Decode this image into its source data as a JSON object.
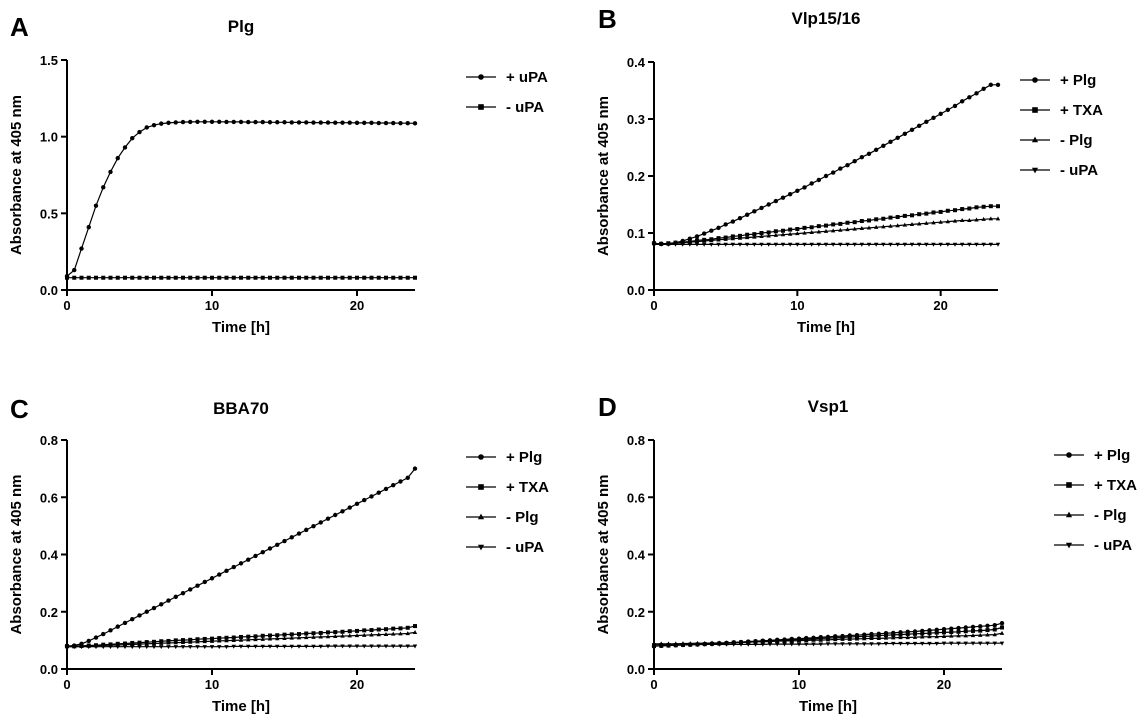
{
  "chart_data": [
    {
      "panel": "A",
      "type": "line",
      "title": "Plg",
      "xlabel": "Time [h]",
      "ylabel": "Absorbance at 405 nm",
      "xlim": [
        0,
        24
      ],
      "ylim": [
        0,
        1.5
      ],
      "x_ticks": [
        "0",
        "10",
        "20"
      ],
      "y_ticks": [
        "0.0",
        "0.5",
        "1.0",
        "1.5"
      ],
      "x_tick_values": [
        0,
        10,
        20
      ],
      "y_tick_values": [
        0,
        0.5,
        1.0,
        1.5
      ],
      "grid": false,
      "legend_position": "right",
      "x": [
        0,
        0.5,
        1,
        1.5,
        2,
        2.5,
        3,
        3.5,
        4,
        4.5,
        5,
        5.5,
        6,
        6.5,
        7,
        7.5,
        8,
        8.5,
        9,
        9.5,
        10,
        10.5,
        11,
        11.5,
        12,
        12.5,
        13,
        13.5,
        14,
        14.5,
        15,
        15.5,
        16,
        16.5,
        17,
        17.5,
        18,
        18.5,
        19,
        19.5,
        20,
        20.5,
        21,
        21.5,
        22,
        22.5,
        23,
        23.5,
        24
      ],
      "series": [
        {
          "name": "+ uPA",
          "marker": "circle",
          "values": [
            0.09,
            0.13,
            0.27,
            0.41,
            0.55,
            0.67,
            0.77,
            0.86,
            0.93,
            0.99,
            1.03,
            1.06,
            1.075,
            1.085,
            1.09,
            1.093,
            1.095,
            1.096,
            1.097,
            1.097,
            1.097,
            1.097,
            1.096,
            1.096,
            1.096,
            1.095,
            1.095,
            1.095,
            1.094,
            1.094,
            1.094,
            1.093,
            1.093,
            1.093,
            1.092,
            1.092,
            1.092,
            1.091,
            1.091,
            1.091,
            1.09,
            1.09,
            1.09,
            1.089,
            1.089,
            1.089,
            1.088,
            1.088,
            1.087
          ]
        },
        {
          "name": "- uPA",
          "marker": "square",
          "values": [
            0.08,
            0.08,
            0.08,
            0.08,
            0.08,
            0.08,
            0.08,
            0.08,
            0.08,
            0.08,
            0.08,
            0.08,
            0.08,
            0.08,
            0.08,
            0.08,
            0.08,
            0.08,
            0.08,
            0.08,
            0.08,
            0.08,
            0.08,
            0.08,
            0.08,
            0.08,
            0.08,
            0.08,
            0.08,
            0.08,
            0.08,
            0.08,
            0.08,
            0.08,
            0.08,
            0.08,
            0.08,
            0.08,
            0.08,
            0.08,
            0.08,
            0.08,
            0.08,
            0.08,
            0.08,
            0.08,
            0.08,
            0.08,
            0.08
          ]
        }
      ]
    },
    {
      "panel": "B",
      "type": "line",
      "title": "Vlp15/16",
      "xlabel": "Time [h]",
      "ylabel": "Absorbance at 405 nm",
      "xlim": [
        0,
        24
      ],
      "ylim": [
        0,
        0.4
      ],
      "x_ticks": [
        "0",
        "10",
        "20"
      ],
      "y_ticks": [
        "0.0",
        "0.1",
        "0.2",
        "0.3",
        "0.4"
      ],
      "x_tick_values": [
        0,
        10,
        20
      ],
      "y_tick_values": [
        0,
        0.1,
        0.2,
        0.3,
        0.4
      ],
      "grid": false,
      "legend_position": "right",
      "x": [
        0,
        0.5,
        1,
        1.5,
        2,
        2.5,
        3,
        3.5,
        4,
        4.5,
        5,
        5.5,
        6,
        6.5,
        7,
        7.5,
        8,
        8.5,
        9,
        9.5,
        10,
        10.5,
        11,
        11.5,
        12,
        12.5,
        13,
        13.5,
        14,
        14.5,
        15,
        15.5,
        16,
        16.5,
        17,
        17.5,
        18,
        18.5,
        19,
        19.5,
        20,
        20.5,
        21,
        21.5,
        22,
        22.5,
        23,
        23.5,
        24
      ],
      "series": [
        {
          "name": "+ Plg",
          "marker": "circle",
          "values": [
            0.082,
            0.081,
            0.081,
            0.083,
            0.086,
            0.09,
            0.094,
            0.099,
            0.104,
            0.109,
            0.115,
            0.12,
            0.126,
            0.132,
            0.138,
            0.144,
            0.15,
            0.156,
            0.162,
            0.168,
            0.174,
            0.18,
            0.187,
            0.193,
            0.2,
            0.206,
            0.213,
            0.219,
            0.226,
            0.233,
            0.239,
            0.246,
            0.253,
            0.26,
            0.267,
            0.274,
            0.281,
            0.288,
            0.295,
            0.302,
            0.309,
            0.316,
            0.323,
            0.331,
            0.338,
            0.345,
            0.353,
            0.36,
            0.36
          ]
        },
        {
          "name": "+ TXA",
          "marker": "square",
          "values": [
            0.082,
            0.081,
            0.082,
            0.083,
            0.084,
            0.085,
            0.087,
            0.088,
            0.089,
            0.091,
            0.092,
            0.094,
            0.095,
            0.097,
            0.098,
            0.1,
            0.101,
            0.103,
            0.104,
            0.106,
            0.107,
            0.109,
            0.11,
            0.112,
            0.113,
            0.115,
            0.116,
            0.118,
            0.119,
            0.121,
            0.122,
            0.124,
            0.125,
            0.127,
            0.128,
            0.13,
            0.131,
            0.133,
            0.134,
            0.136,
            0.137,
            0.139,
            0.14,
            0.142,
            0.143,
            0.145,
            0.146,
            0.147,
            0.147
          ]
        },
        {
          "name": "- Plg",
          "marker": "triangle-up",
          "values": [
            0.082,
            0.081,
            0.081,
            0.082,
            0.083,
            0.084,
            0.085,
            0.086,
            0.087,
            0.088,
            0.089,
            0.09,
            0.091,
            0.092,
            0.093,
            0.094,
            0.095,
            0.096,
            0.097,
            0.098,
            0.099,
            0.1,
            0.101,
            0.102,
            0.103,
            0.104,
            0.105,
            0.106,
            0.107,
            0.108,
            0.109,
            0.11,
            0.111,
            0.112,
            0.113,
            0.114,
            0.115,
            0.116,
            0.117,
            0.118,
            0.119,
            0.12,
            0.121,
            0.122,
            0.122,
            0.123,
            0.124,
            0.125,
            0.125
          ]
        },
        {
          "name": "- uPA",
          "marker": "triangle-down",
          "values": [
            0.08,
            0.08,
            0.08,
            0.08,
            0.08,
            0.08,
            0.08,
            0.08,
            0.08,
            0.08,
            0.08,
            0.08,
            0.08,
            0.08,
            0.08,
            0.08,
            0.08,
            0.08,
            0.08,
            0.08,
            0.08,
            0.08,
            0.08,
            0.08,
            0.08,
            0.08,
            0.08,
            0.08,
            0.08,
            0.08,
            0.08,
            0.08,
            0.08,
            0.08,
            0.08,
            0.08,
            0.08,
            0.08,
            0.08,
            0.08,
            0.08,
            0.08,
            0.08,
            0.08,
            0.08,
            0.08,
            0.08,
            0.08,
            0.08
          ]
        }
      ]
    },
    {
      "panel": "C",
      "type": "line",
      "title": "BBA70",
      "xlabel": "Time [h]",
      "ylabel": "Absorbance at 405 nm",
      "xlim": [
        0,
        24
      ],
      "ylim": [
        0,
        0.8
      ],
      "x_ticks": [
        "0",
        "10",
        "20"
      ],
      "y_ticks": [
        "0.0",
        "0.2",
        "0.4",
        "0.6",
        "0.8"
      ],
      "x_tick_values": [
        0,
        10,
        20
      ],
      "y_tick_values": [
        0,
        0.2,
        0.4,
        0.6,
        0.8
      ],
      "grid": false,
      "legend_position": "right",
      "x": [
        0,
        0.5,
        1,
        1.5,
        2,
        2.5,
        3,
        3.5,
        4,
        4.5,
        5,
        5.5,
        6,
        6.5,
        7,
        7.5,
        8,
        8.5,
        9,
        9.5,
        10,
        10.5,
        11,
        11.5,
        12,
        12.5,
        13,
        13.5,
        14,
        14.5,
        15,
        15.5,
        16,
        16.5,
        17,
        17.5,
        18,
        18.5,
        19,
        19.5,
        20,
        20.5,
        21,
        21.5,
        22,
        22.5,
        23,
        23.5,
        24
      ],
      "series": [
        {
          "name": "+ Plg",
          "marker": "circle",
          "values": [
            0.08,
            0.082,
            0.088,
            0.098,
            0.11,
            0.122,
            0.135,
            0.148,
            0.161,
            0.174,
            0.187,
            0.2,
            0.213,
            0.226,
            0.239,
            0.252,
            0.265,
            0.278,
            0.291,
            0.304,
            0.317,
            0.33,
            0.343,
            0.356,
            0.369,
            0.382,
            0.395,
            0.408,
            0.421,
            0.434,
            0.447,
            0.46,
            0.473,
            0.486,
            0.499,
            0.512,
            0.525,
            0.538,
            0.551,
            0.564,
            0.577,
            0.59,
            0.603,
            0.616,
            0.629,
            0.642,
            0.655,
            0.668,
            0.7
          ]
        },
        {
          "name": "+ TXA",
          "marker": "square",
          "values": [
            0.08,
            0.08,
            0.081,
            0.082,
            0.083,
            0.085,
            0.086,
            0.088,
            0.089,
            0.091,
            0.092,
            0.094,
            0.095,
            0.097,
            0.098,
            0.1,
            0.101,
            0.102,
            0.104,
            0.105,
            0.106,
            0.108,
            0.109,
            0.11,
            0.112,
            0.113,
            0.114,
            0.116,
            0.117,
            0.118,
            0.12,
            0.121,
            0.122,
            0.124,
            0.125,
            0.126,
            0.128,
            0.129,
            0.13,
            0.132,
            0.133,
            0.135,
            0.136,
            0.138,
            0.139,
            0.141,
            0.142,
            0.144,
            0.15
          ]
        },
        {
          "name": "- Plg",
          "marker": "triangle-up",
          "values": [
            0.078,
            0.078,
            0.079,
            0.08,
            0.081,
            0.082,
            0.083,
            0.084,
            0.085,
            0.086,
            0.087,
            0.088,
            0.089,
            0.09,
            0.091,
            0.092,
            0.093,
            0.094,
            0.095,
            0.096,
            0.097,
            0.098,
            0.099,
            0.1,
            0.101,
            0.102,
            0.103,
            0.104,
            0.105,
            0.106,
            0.107,
            0.108,
            0.109,
            0.11,
            0.111,
            0.112,
            0.113,
            0.114,
            0.115,
            0.116,
            0.117,
            0.118,
            0.119,
            0.12,
            0.121,
            0.122,
            0.123,
            0.124,
            0.128
          ]
        },
        {
          "name": "- uPA",
          "marker": "triangle-down",
          "values": [
            0.078,
            0.078,
            0.078,
            0.078,
            0.078,
            0.078,
            0.078,
            0.078,
            0.078,
            0.078,
            0.078,
            0.078,
            0.078,
            0.078,
            0.078,
            0.078,
            0.078,
            0.078,
            0.078,
            0.078,
            0.078,
            0.078,
            0.078,
            0.079,
            0.079,
            0.079,
            0.079,
            0.079,
            0.079,
            0.079,
            0.079,
            0.079,
            0.079,
            0.079,
            0.079,
            0.079,
            0.08,
            0.08,
            0.08,
            0.08,
            0.08,
            0.08,
            0.08,
            0.08,
            0.08,
            0.08,
            0.08,
            0.08,
            0.08
          ]
        }
      ]
    },
    {
      "panel": "D",
      "type": "line",
      "title": "Vsp1",
      "xlabel": "Time [h]",
      "ylabel": "Absorbance at 405 nm",
      "xlim": [
        0,
        24
      ],
      "ylim": [
        0,
        0.8
      ],
      "x_ticks": [
        "0",
        "10",
        "20"
      ],
      "y_ticks": [
        "0.0",
        "0.2",
        "0.4",
        "0.6",
        "0.8"
      ],
      "x_tick_values": [
        0,
        10,
        20
      ],
      "y_tick_values": [
        0,
        0.2,
        0.4,
        0.6,
        0.8
      ],
      "grid": false,
      "legend_position": "right",
      "x": [
        0,
        0.5,
        1,
        1.5,
        2,
        2.5,
        3,
        3.5,
        4,
        4.5,
        5,
        5.5,
        6,
        6.5,
        7,
        7.5,
        8,
        8.5,
        9,
        9.5,
        10,
        10.5,
        11,
        11.5,
        12,
        12.5,
        13,
        13.5,
        14,
        14.5,
        15,
        15.5,
        16,
        16.5,
        17,
        17.5,
        18,
        18.5,
        19,
        19.5,
        20,
        20.5,
        21,
        21.5,
        22,
        22.5,
        23,
        23.5,
        24
      ],
      "series": [
        {
          "name": "+ Plg",
          "marker": "circle",
          "values": [
            0.08,
            0.081,
            0.082,
            0.083,
            0.084,
            0.085,
            0.086,
            0.087,
            0.088,
            0.09,
            0.091,
            0.093,
            0.094,
            0.096,
            0.097,
            0.099,
            0.1,
            0.102,
            0.103,
            0.105,
            0.106,
            0.108,
            0.109,
            0.111,
            0.112,
            0.114,
            0.115,
            0.117,
            0.118,
            0.12,
            0.122,
            0.123,
            0.125,
            0.126,
            0.128,
            0.13,
            0.131,
            0.133,
            0.135,
            0.137,
            0.139,
            0.141,
            0.143,
            0.145,
            0.147,
            0.149,
            0.151,
            0.153,
            0.16
          ]
        },
        {
          "name": "+ TXA",
          "marker": "square",
          "values": [
            0.08,
            0.081,
            0.082,
            0.083,
            0.084,
            0.085,
            0.086,
            0.087,
            0.088,
            0.089,
            0.09,
            0.092,
            0.093,
            0.094,
            0.095,
            0.097,
            0.098,
            0.099,
            0.1,
            0.102,
            0.103,
            0.104,
            0.105,
            0.107,
            0.108,
            0.109,
            0.11,
            0.112,
            0.113,
            0.114,
            0.115,
            0.117,
            0.118,
            0.119,
            0.12,
            0.122,
            0.123,
            0.124,
            0.125,
            0.127,
            0.128,
            0.129,
            0.13,
            0.132,
            0.133,
            0.134,
            0.136,
            0.138,
            0.145
          ]
        },
        {
          "name": "- Plg",
          "marker": "triangle-up",
          "values": [
            0.088,
            0.088,
            0.088,
            0.088,
            0.089,
            0.089,
            0.09,
            0.09,
            0.091,
            0.091,
            0.092,
            0.092,
            0.093,
            0.094,
            0.095,
            0.095,
            0.096,
            0.097,
            0.098,
            0.098,
            0.099,
            0.1,
            0.101,
            0.101,
            0.102,
            0.103,
            0.104,
            0.104,
            0.105,
            0.106,
            0.107,
            0.107,
            0.108,
            0.109,
            0.11,
            0.11,
            0.111,
            0.112,
            0.113,
            0.113,
            0.114,
            0.115,
            0.116,
            0.116,
            0.117,
            0.118,
            0.119,
            0.12,
            0.125
          ]
        },
        {
          "name": "- uPA",
          "marker": "triangle-down",
          "values": [
            0.085,
            0.085,
            0.085,
            0.085,
            0.085,
            0.085,
            0.085,
            0.086,
            0.086,
            0.086,
            0.086,
            0.086,
            0.086,
            0.086,
            0.086,
            0.086,
            0.087,
            0.087,
            0.087,
            0.087,
            0.087,
            0.087,
            0.087,
            0.087,
            0.088,
            0.088,
            0.088,
            0.088,
            0.088,
            0.088,
            0.088,
            0.088,
            0.089,
            0.089,
            0.089,
            0.089,
            0.089,
            0.089,
            0.089,
            0.089,
            0.09,
            0.09,
            0.09,
            0.09,
            0.09,
            0.09,
            0.09,
            0.09,
            0.09
          ]
        }
      ]
    }
  ]
}
